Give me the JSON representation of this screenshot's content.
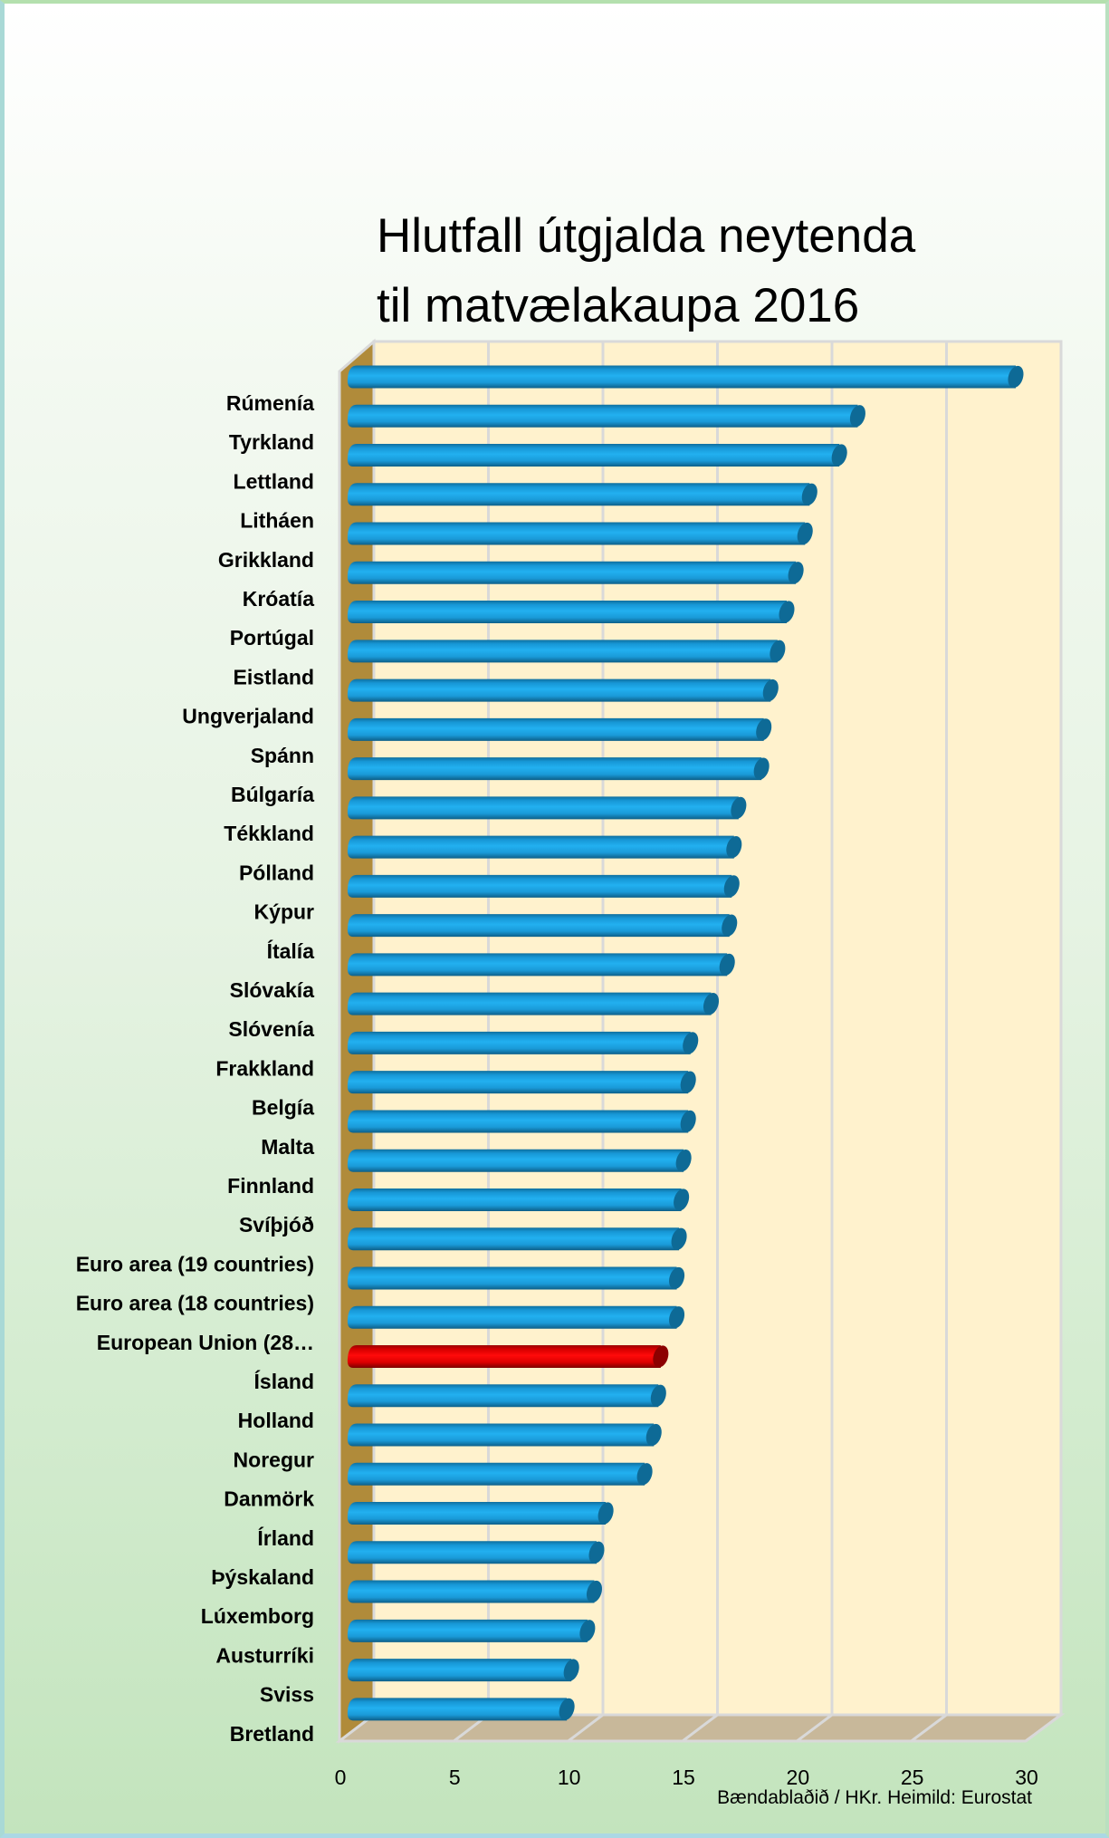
{
  "title_lines": [
    "Hlutfall útgjalda neytenda",
    "til matvælakaupa 2016"
  ],
  "source": "Bændablaðið / HKr. Heimild: Eurostat",
  "colors": {
    "bar": "#1ea8e8",
    "bar_dark": "#0e6a96",
    "highlight": "#ee0000",
    "highlight_dark": "#8c0000",
    "back_wall": "#fff2cd",
    "side_wall": "#b08b3a",
    "floor": "#c8b89a",
    "grid": "#d9d9d9"
  },
  "chart_data": {
    "type": "bar",
    "orientation": "horizontal",
    "style": "3d-cylinder",
    "title": "Hlutfall útgjalda neytenda til matvælakaupa 2016",
    "xlabel": "",
    "ylabel": "",
    "xlim": [
      0,
      30
    ],
    "x_ticks": [
      "0",
      "5",
      "10",
      "15",
      "20",
      "25",
      "30"
    ],
    "grid": true,
    "legend": "none",
    "highlight_category": "Ísland",
    "categories": [
      "Rúmenía",
      "Tyrkland",
      "Lettland",
      "Litháen",
      "Grikkland",
      "Króatía",
      "Portúgal",
      "Eistland",
      "Ungverjaland",
      "Spánn",
      "Búlgaría",
      "Tékkland",
      "Pólland",
      "Kýpur",
      "Ítalía",
      "Slóvakía",
      "Slóvenía",
      "Frakkland",
      "Belgía",
      "Malta",
      "Finnland",
      "Svíþjóð",
      "Euro area (19 countries)",
      "Euro area (18 countries)",
      "European Union (28…",
      "Ísland",
      "Holland",
      "Noregur",
      "Danmörk",
      "Írland",
      "Þýskaland",
      "Lúxemborg",
      "Austurríki",
      "Sviss",
      "Bretland"
    ],
    "values": [
      28.3,
      21.4,
      20.6,
      19.3,
      19.1,
      18.7,
      18.3,
      17.9,
      17.6,
      17.3,
      17.2,
      16.2,
      16.0,
      15.9,
      15.8,
      15.7,
      15.0,
      14.1,
      14.0,
      14.0,
      13.8,
      13.7,
      13.6,
      13.5,
      13.5,
      12.8,
      12.7,
      12.5,
      12.1,
      10.4,
      10.0,
      9.9,
      9.6,
      8.9,
      8.7
    ]
  }
}
